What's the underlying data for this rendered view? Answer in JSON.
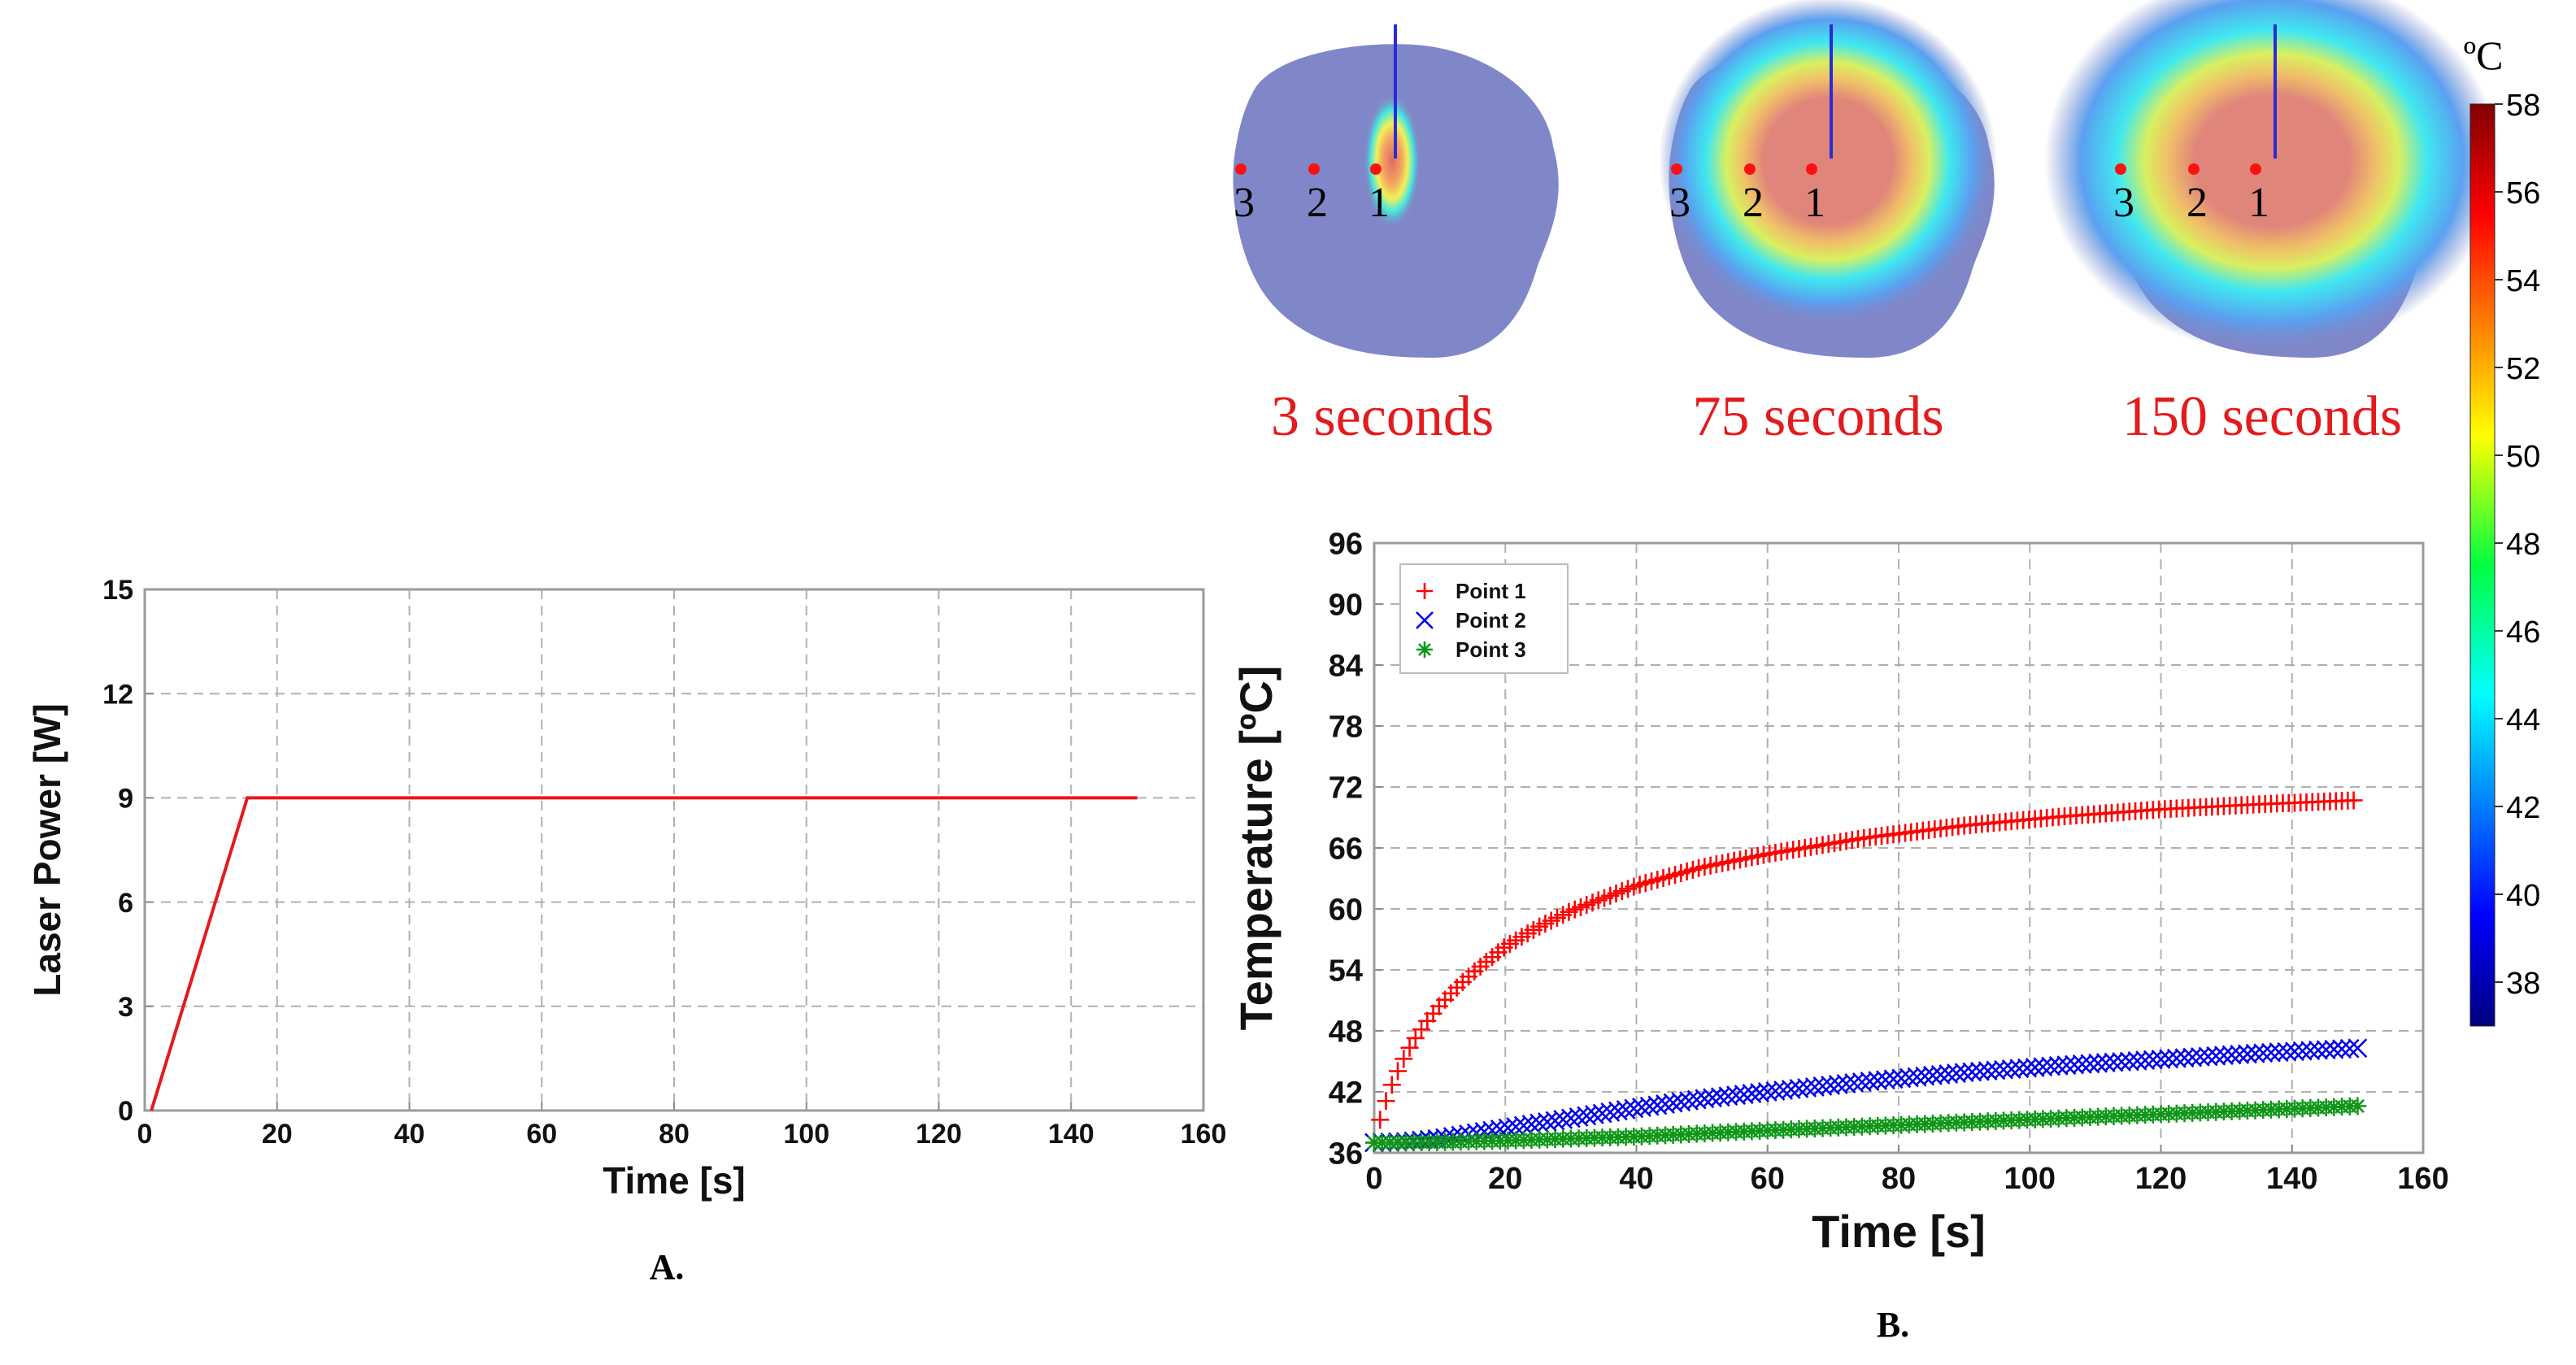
{
  "panel_labels": {
    "a": "A.",
    "b": "B."
  },
  "colors": {
    "power": "#e41a1c",
    "point1": "#ff0000",
    "point2": "#0000ee",
    "point3": "#109618"
  },
  "chart_data": [
    {
      "type": "line",
      "panel": "A.",
      "xlabel": "Time [s]",
      "ylabel": "Laser Power [W]",
      "xlim": [
        0,
        160
      ],
      "ylim": [
        0,
        15
      ],
      "xticks": [
        "0",
        "20",
        "40",
        "60",
        "80",
        "100",
        "120",
        "140",
        "160"
      ],
      "yticks": [
        "0",
        "3",
        "6",
        "9",
        "12",
        "15"
      ],
      "grid": true,
      "series": [
        {
          "x": [
            1,
            15.5,
            150
          ],
          "y": [
            0,
            9,
            9
          ]
        }
      ]
    },
    {
      "type": "scatter",
      "panel": "B.",
      "xlabel": "Time [s]",
      "ylabel": "Temperature [ºC]",
      "xlim": [
        0,
        160
      ],
      "ylim": [
        36,
        96
      ],
      "xticks": [
        "0",
        "20",
        "40",
        "60",
        "80",
        "100",
        "120",
        "140",
        "160"
      ],
      "yticks": [
        "36",
        "42",
        "48",
        "54",
        "60",
        "66",
        "72",
        "78",
        "84",
        "90",
        "96"
      ],
      "grid": true,
      "legend": "top-left",
      "series": [
        {
          "name": "Point 1",
          "marker": "+",
          "x": [
            0,
            1,
            2,
            3,
            4,
            5,
            6,
            8,
            10,
            12,
            15,
            20,
            25,
            30,
            40,
            50,
            60,
            75,
            90,
            105,
            120,
            135,
            150
          ],
          "y": [
            37,
            39.5,
            41.5,
            43.2,
            44.6,
            45.9,
            47,
            48.9,
            50.5,
            51.9,
            53.7,
            56.3,
            58.2,
            59.8,
            62.3,
            64.1,
            65.4,
            67,
            68.2,
            69.1,
            69.8,
            70.3,
            70.7
          ]
        },
        {
          "name": "Point 2",
          "marker": "x",
          "x": [
            0,
            5,
            10,
            15,
            20,
            30,
            40,
            50,
            60,
            75,
            90,
            105,
            120,
            135,
            150
          ],
          "y": [
            37,
            37.1,
            37.4,
            37.9,
            38.4,
            39.4,
            40.4,
            41.3,
            42,
            43,
            43.9,
            44.6,
            45.2,
            45.8,
            46.3
          ]
        },
        {
          "name": "Point 3",
          "marker": "*",
          "x": [
            0,
            10,
            20,
            30,
            40,
            50,
            60,
            75,
            90,
            105,
            120,
            135,
            150
          ],
          "y": [
            37,
            37.05,
            37.2,
            37.4,
            37.6,
            37.9,
            38.2,
            38.6,
            39,
            39.4,
            39.8,
            40.2,
            40.6
          ]
        }
      ]
    }
  ],
  "heatmaps": {
    "frames": [
      {
        "label": "3 seconds",
        "stage": 0
      },
      {
        "label": "75 seconds",
        "stage": 1
      },
      {
        "label": "150 seconds",
        "stage": 2
      }
    ],
    "point_labels": [
      "1",
      "2",
      "3"
    ]
  },
  "colorbar": {
    "unit": "ºC",
    "range": [
      37,
      58
    ],
    "ticks": [
      "38",
      "40",
      "42",
      "44",
      "46",
      "48",
      "50",
      "52",
      "54",
      "56",
      "58"
    ]
  }
}
